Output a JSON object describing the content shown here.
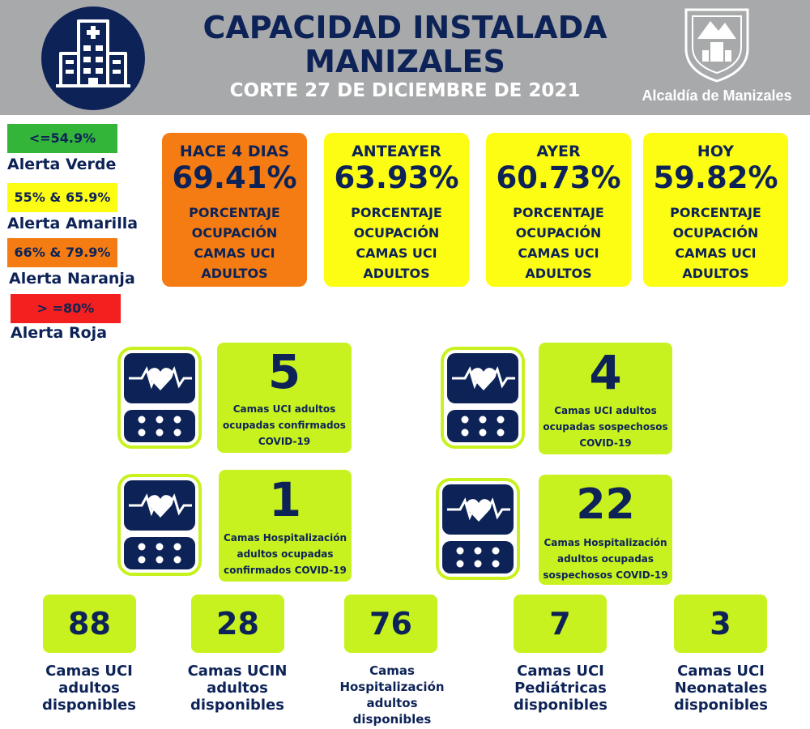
{
  "header": {
    "title_line1": "CAPACIDAD INSTALADA",
    "title_line2": "MANIZALES",
    "subtitle": "CORTE 27 DE DICIEMBRE  DE 2021",
    "organization": "Alcaldía de Manizales",
    "logo_icon": "hospital-building-icon",
    "crest_icon": "city-crest-icon"
  },
  "colors": {
    "navy": "#0d2357",
    "header_gray": "#a8a9ab",
    "lime": "#c8f21f",
    "green": "#33b53a",
    "yellow": "#fdfd14",
    "orange": "#f57c13",
    "red": "#f41f1f"
  },
  "legend": [
    {
      "range": "<=54.9%",
      "label": "Alerta Verde",
      "color": "#33b53a"
    },
    {
      "range": "55% & 65.9%",
      "label": "Alerta Amarilla",
      "color": "#fdfd14"
    },
    {
      "range": "66% & 79.9%",
      "label": "Alerta Naranja",
      "color": "#f57c13"
    },
    {
      "range": "> =80%",
      "label": "Alerta Roja",
      "color": "#f41f1f"
    }
  ],
  "occupancy_cards": [
    {
      "heading": "HACE 4 DIAS",
      "value": "69.41%",
      "desc1": "PORCENTAJE",
      "desc2": "OCUPACIÓN",
      "desc3": "CAMAS UCI",
      "desc4": "ADULTOS",
      "color": "#f57c13"
    },
    {
      "heading": "ANTEAYER",
      "value": "63.93%",
      "desc1": "PORCENTAJE",
      "desc2": "OCUPACIÓN",
      "desc3": "CAMAS UCI",
      "desc4": "ADULTOS",
      "color": "#fdfd14"
    },
    {
      "heading": "AYER",
      "value": "60.73%",
      "desc1": "PORCENTAJE",
      "desc2": "OCUPACIÓN",
      "desc3": "CAMAS UCI",
      "desc4": "ADULTOS",
      "color": "#fdfd14"
    },
    {
      "heading": "HOY",
      "value": "59.82%",
      "desc1": "PORCENTAJE",
      "desc2": "OCUPACIÓN",
      "desc3": "CAMAS UCI",
      "desc4": "ADULTOS",
      "color": "#fdfd14"
    }
  ],
  "stats": [
    {
      "value": "5",
      "line1": "Camas UCI adultos",
      "line2": "ocupadas confirmados",
      "line3": "COVID-19",
      "icon": "heart-monitor-icon"
    },
    {
      "value": "4",
      "line1": "Camas UCI adultos",
      "line2": "ocupadas sospechosos",
      "line3": "COVID-19",
      "icon": "heart-monitor-icon"
    },
    {
      "value": "1",
      "line1": "Camas  Hospitalización",
      "line2": "adultos ocupadas",
      "line3": "confirmados COVID-19",
      "icon": "heart-monitor-icon"
    },
    {
      "value": "22",
      "line1": "Camas  Hospitalización",
      "line2": "adultos ocupadas",
      "line3": "sospechosos COVID-19",
      "icon": "heart-monitor-icon"
    }
  ],
  "available": [
    {
      "value": "88",
      "line1": "Camas UCI",
      "line2": "adultos",
      "line3": "disponibles",
      "line4": ""
    },
    {
      "value": "28",
      "line1": "Camas UCIN",
      "line2": "adultos",
      "line3": "disponibles",
      "line4": ""
    },
    {
      "value": "76",
      "line1": "Camas",
      "line2": "Hospitalización",
      "line3": "adultos",
      "line4": "disponibles"
    },
    {
      "value": "7",
      "line1": "Camas  UCI",
      "line2": "Pediátricas",
      "line3": "disponibles",
      "line4": ""
    },
    {
      "value": "3",
      "line1": "Camas  UCI",
      "line2": "Neonatales",
      "line3": "disponibles",
      "line4": ""
    }
  ]
}
